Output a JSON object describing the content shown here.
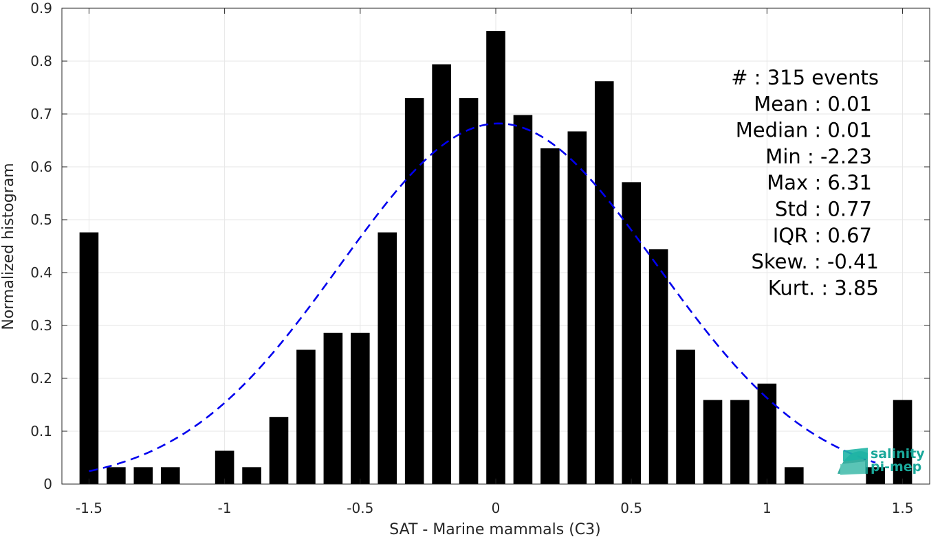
{
  "chart_data": {
    "type": "bar",
    "xlabel": "SAT - Marine mammals (C3)",
    "ylabel": "Normalized histogram",
    "xlim": [
      -1.6,
      1.6
    ],
    "ylim": [
      0,
      0.9
    ],
    "xticks": [
      -1.5,
      -1,
      -0.5,
      0,
      0.5,
      1,
      1.5
    ],
    "xtick_labels": [
      "-1.5",
      "-1",
      "-0.5",
      "0",
      "0.5",
      "1",
      "1.5"
    ],
    "yticks": [
      0,
      0.1,
      0.2,
      0.3,
      0.4,
      0.5,
      0.6,
      0.7,
      0.8,
      0.9
    ],
    "ytick_labels": [
      "0",
      "0.1",
      "0.2",
      "0.3",
      "0.4",
      "0.5",
      "0.6",
      "0.7",
      "0.8",
      "0.9"
    ],
    "grid": true,
    "bar_width": 0.07,
    "bar_color": "#000000",
    "x": [
      -1.5,
      -1.4,
      -1.3,
      -1.2,
      -1.1,
      -1.0,
      -0.9,
      -0.8,
      -0.7,
      -0.6,
      -0.5,
      -0.4,
      -0.3,
      -0.2,
      -0.1,
      0.0,
      0.1,
      0.2,
      0.3,
      0.4,
      0.5,
      0.6,
      0.7,
      0.8,
      0.9,
      1.0,
      1.1,
      1.2,
      1.3,
      1.4,
      1.5
    ],
    "values": [
      0.476,
      0.032,
      0.032,
      0.032,
      0.0,
      0.063,
      0.032,
      0.127,
      0.254,
      0.286,
      0.286,
      0.476,
      0.73,
      0.794,
      0.73,
      0.857,
      0.698,
      0.635,
      0.667,
      0.762,
      0.571,
      0.444,
      0.254,
      0.159,
      0.159,
      0.19,
      0.032,
      0.0,
      0.0,
      0.032,
      0.159
    ],
    "fit_curve": {
      "style": "dashed",
      "color": "#0000ee",
      "mean": 0.01,
      "std": 0.585,
      "peak": 0.682,
      "x_range": [
        -1.5,
        1.4
      ]
    },
    "stats": [
      "#  : 315 events",
      "Mean : 0.01",
      "Median : 0.01",
      "Min : -2.23",
      "Max : 6.31",
      "Std : 0.77",
      "IQR : 0.67",
      "Skew. : -0.41",
      "Kurt. : 3.85"
    ]
  },
  "logo": {
    "line1": "salinity",
    "line2": "pi-mep",
    "color": "#1aa89a"
  }
}
